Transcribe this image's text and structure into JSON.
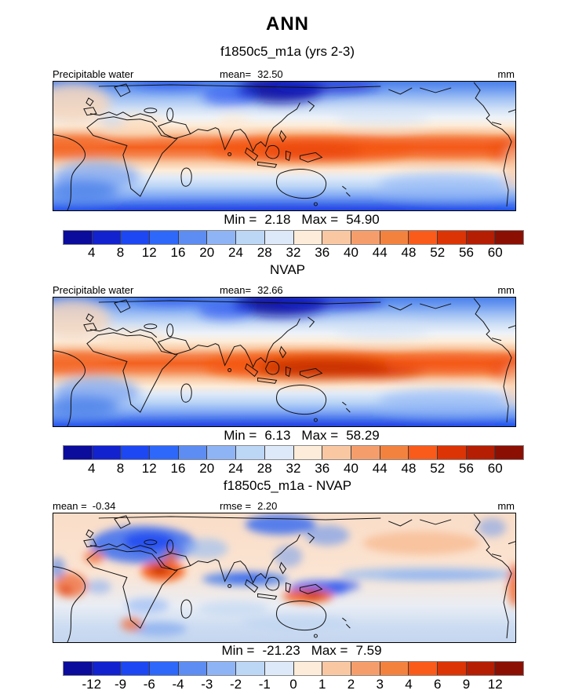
{
  "figure": {
    "title": "ANN",
    "subtitle": "f1850c5_m1a (yrs 2-3)"
  },
  "labels": {
    "min": "Min =",
    "max": "Max ="
  },
  "palette": [
    "#0b0b9c",
    "#1322cf",
    "#1d47f2",
    "#2e68fa",
    "#5d8df2",
    "#8fb4f5",
    "#bcd6f6",
    "#dde9f8",
    "#fdecd9",
    "#f9c8a2",
    "#f59e6c",
    "#f4823f",
    "#fa5a1a",
    "#dd3405",
    "#b51e03",
    "#8c0f03"
  ],
  "panels": [
    {
      "header_left": "Precipitable water",
      "mean_label": "mean=",
      "mean": "32.50",
      "units": "mm",
      "min": "2.18",
      "max": "54.90",
      "ticks": [
        "4",
        "8",
        "12",
        "16",
        "20",
        "24",
        "28",
        "32",
        "36",
        "40",
        "44",
        "48",
        "52",
        "56",
        "60"
      ]
    },
    {
      "title": "NVAP",
      "header_left": "Precipitable water",
      "mean_label": "mean=",
      "mean": "32.66",
      "units": "mm",
      "min": "6.13",
      "max": "58.29",
      "ticks": [
        "4",
        "8",
        "12",
        "16",
        "20",
        "24",
        "28",
        "32",
        "36",
        "40",
        "44",
        "48",
        "52",
        "56",
        "60"
      ]
    },
    {
      "title": "f1850c5_m1a - NVAP",
      "mean_label": "mean =",
      "mean": "-0.34",
      "rmse_label": "rmse =",
      "rmse": "2.20",
      "units": "mm",
      "min": "-21.23",
      "max": "7.59",
      "ticks": [
        "-12",
        "-9",
        "-6",
        "-4",
        "-3",
        "-2",
        "-1",
        "0",
        "1",
        "2",
        "3",
        "4",
        "6",
        "9",
        "12"
      ]
    }
  ],
  "chart_data": {
    "type": "heatmap",
    "title": "ANN",
    "subtitle": "f1850c5_m1a (yrs 2-3)",
    "variable": "Precipitable water",
    "units": "mm",
    "projection": "global cylindrical equidistant lat-lon map",
    "colormap": [
      "#0b0b9c",
      "#1322cf",
      "#1d47f2",
      "#2e68fa",
      "#5d8df2",
      "#8fb4f5",
      "#bcd6f6",
      "#dde9f8",
      "#fdecd9",
      "#f9c8a2",
      "#f59e6c",
      "#f4823f",
      "#fa5a1a",
      "#dd3405",
      "#b51e03",
      "#8c0f03"
    ],
    "panels": [
      {
        "label": "f1850c5_m1a (yrs 2-3)",
        "mean": 32.5,
        "min": 2.18,
        "max": 54.9,
        "contour_levels": [
          4,
          8,
          12,
          16,
          20,
          24,
          28,
          32,
          36,
          40,
          44,
          48,
          52,
          56,
          60
        ]
      },
      {
        "label": "NVAP",
        "mean": 32.66,
        "min": 6.13,
        "max": 58.29,
        "contour_levels": [
          4,
          8,
          12,
          16,
          20,
          24,
          28,
          32,
          36,
          40,
          44,
          48,
          52,
          56,
          60
        ]
      },
      {
        "label": "f1850c5_m1a - NVAP",
        "mean": -0.34,
        "rmse": 2.2,
        "min": -21.23,
        "max": 7.59,
        "contour_levels": [
          -12,
          -9,
          -6,
          -4,
          -3,
          -2,
          -1,
          0,
          1,
          2,
          3,
          4,
          6,
          9,
          12
        ]
      }
    ]
  }
}
